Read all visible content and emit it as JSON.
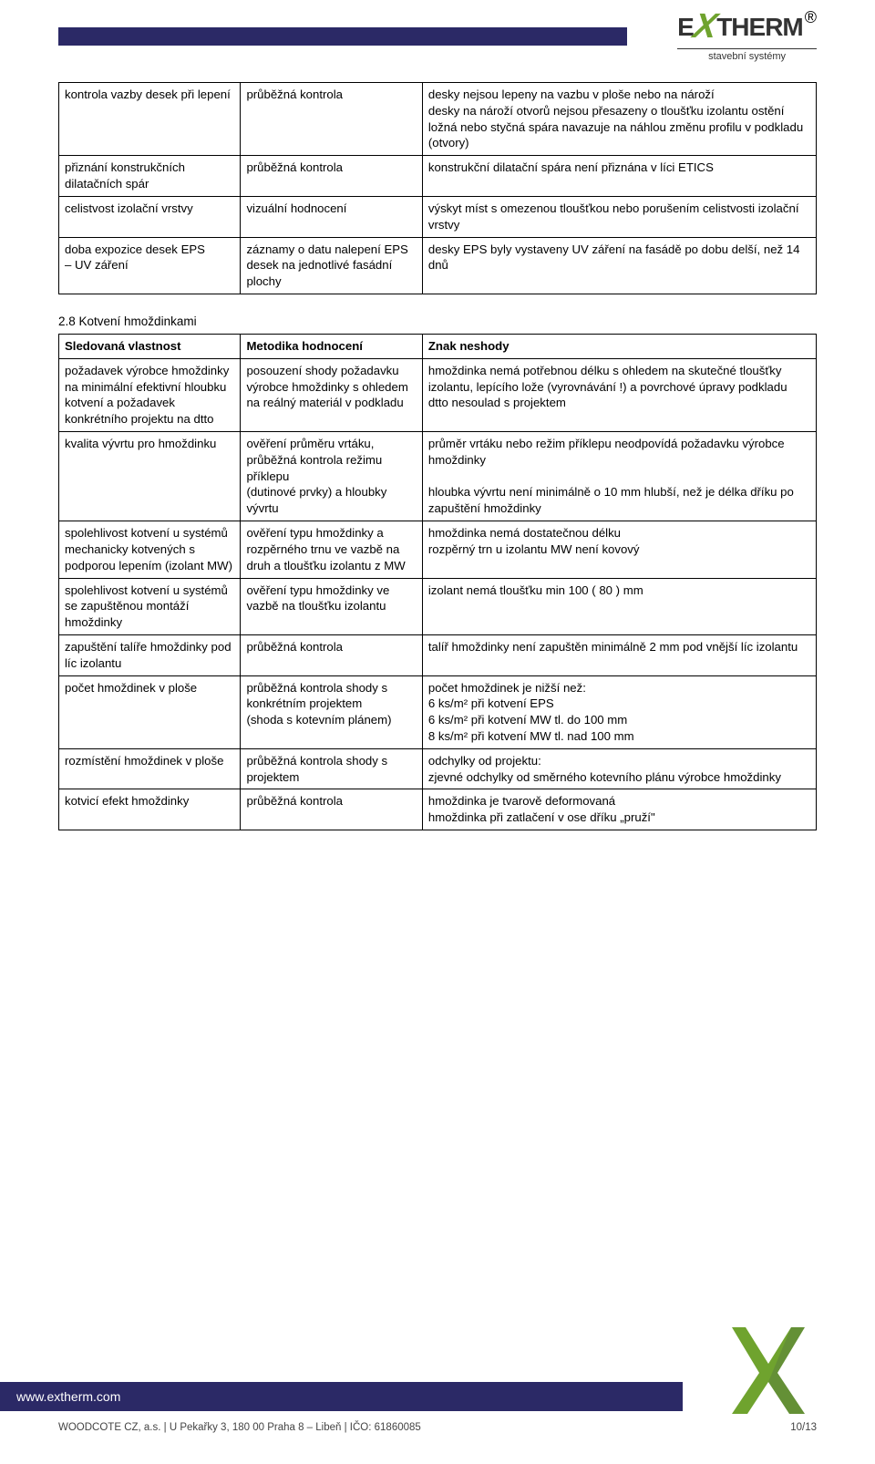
{
  "brand": {
    "name_part1": "E",
    "name_x": "X",
    "name_part2": "THERM",
    "subtitle": "stavební systémy"
  },
  "table1": {
    "rows": [
      {
        "c1": "kontrola vazby desek při lepení",
        "c2": "průběžná kontrola",
        "c3": "desky nejsou lepeny na vazbu v ploše nebo na nároží\ndesky na nároží otvorů nejsou přesazeny o tloušťku izolantu ostění\nložná nebo styčná spára navazuje na náhlou změnu profilu v podkladu (otvory)"
      },
      {
        "c1": "přiznání konstrukčních dilatačních spár",
        "c2": "průběžná kontrola",
        "c3": "konstrukční dilatační spára  není přiznána  v líci ETICS"
      },
      {
        "c1": "celistvost izolační vrstvy",
        "c2": "vizuální hodnocení",
        "c3": "výskyt míst s omezenou tloušťkou nebo porušením celistvosti izolační vrstvy"
      },
      {
        "c1": "doba expozice desek EPS\n– UV záření",
        "c2": "záznamy o datu nalepení EPS desek na jednotlivé fasádní plochy",
        "c3": "desky EPS byly vystaveny UV záření na fasádě po dobu delší, než 14 dnů"
      }
    ]
  },
  "section2_heading": "2.8 Kotvení hmoždinkami",
  "table2": {
    "header": {
      "c1": "Sledovaná vlastnost",
      "c2": "Metodika hodnocení",
      "c3": "Znak neshody"
    },
    "rows": [
      {
        "c1": "požadavek výrobce hmoždinky na minimální efektivní hloubku kotvení a požadavek konkrétního projektu na dtto",
        "c2": "posouzení shody požadavku výrobce hmoždinky s ohledem na reálný materiál v podkladu",
        "c3": "hmoždinka nemá potřebnou délku s ohledem na skutečné tloušťky izolantu, lepícího lože (vyrovnávání !) a povrchové úpravy podkladu\ndtto  nesoulad s projektem"
      },
      {
        "c1": "kvalita vývrtu pro hmoždinku",
        "c2": "ověření průměru vrtáku, průběžná kontrola režimu příklepu\n(dutinové prvky) a hloubky vývrtu",
        "c3": "průměr vrtáku nebo režim příklepu neodpovídá požadavku výrobce hmoždinky\n\nhloubka vývrtu není minimálně o 10 mm hlubší, než je délka dříku po zapuštění hmoždinky"
      },
      {
        "c1": "spolehlivost kotvení u systémů mechanicky kotvených s podporou lepením (izolant MW)",
        "c2": "ověření typu hmoždinky a rozpěrného trnu ve vazbě na druh a tloušťku izolantu z MW",
        "c3": "hmoždinka nemá dostatečnou délku\nrozpěrný trn u izolantu MW není kovový"
      },
      {
        "c1": "spolehlivost kotvení u systémů se zapuštěnou montáží hmoždinky",
        "c2": "ověření typu hmoždinky ve vazbě na tloušťku izolantu",
        "c3": "izolant  nemá tloušťku min 100 ( 80 ) mm"
      },
      {
        "c1": "zapuštění talíře hmoždinky pod líc izolantu",
        "c2": "průběžná kontrola",
        "c3": "talíř hmoždinky není zapuštěn minimálně   2 mm pod vnější líc izolantu"
      },
      {
        "c1": "počet hmoždinek v ploše",
        "c2": "průběžná kontrola shody s konkrétním projektem\n(shoda s kotevním plánem)",
        "c3": "počet hmoždinek je nižší než:\n6 ks/m² při kotvení EPS\n6 ks/m² při kotvení MW  tl. do  100 mm\n8 ks/m² při kotvení MW tl.  nad 100 mm"
      },
      {
        "c1": "rozmístění hmoždinek v ploše",
        "c2": "průběžná kontrola shody s projektem",
        "c3": "odchylky od projektu:\nzjevné odchylky od směrného kotevního plánu výrobce hmoždinky"
      },
      {
        "c1": "kotvicí efekt hmoždinky",
        "c2": "průběžná kontrola",
        "c3": "hmoždinka je tvarově deformovaná\nhmoždinka při zatlačení v ose dříku „pruží\""
      }
    ]
  },
  "footer": {
    "url": "www.extherm.com",
    "line": "WOODCOTE CZ, a.s. | U Pekařky 3, 180 00 Praha 8 – Libeň | IČO: 61860085",
    "page": "10/13"
  }
}
